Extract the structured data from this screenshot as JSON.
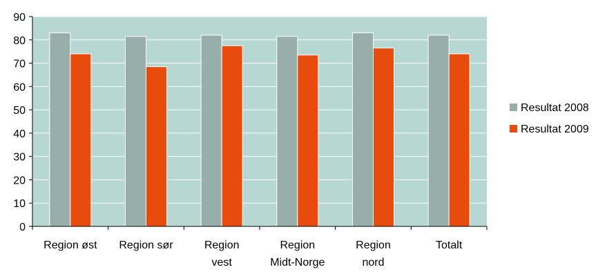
{
  "chart_data": {
    "type": "bar",
    "categories": [
      [
        "Region øst"
      ],
      [
        "Region sør"
      ],
      [
        "Region",
        "vest"
      ],
      [
        "Region",
        "Midt-Norge"
      ],
      [
        "Region",
        "nord"
      ],
      [
        "Totalt"
      ]
    ],
    "series": [
      {
        "name": "Resultat 2008",
        "values": [
          83,
          81.5,
          82,
          81.5,
          83,
          82
        ],
        "color": "#97aeaa"
      },
      {
        "name": "Resultat 2009",
        "values": [
          74,
          68.5,
          77.5,
          73.5,
          76.5,
          74
        ],
        "color": "#e84c0c"
      }
    ],
    "ylim": [
      0,
      90
    ],
    "yticks": [
      0,
      10,
      20,
      30,
      40,
      50,
      60,
      70,
      80,
      90
    ],
    "grid": true,
    "plot_background": "#b7d7d2",
    "grid_color": "#ffffff",
    "legend_position": "right"
  }
}
